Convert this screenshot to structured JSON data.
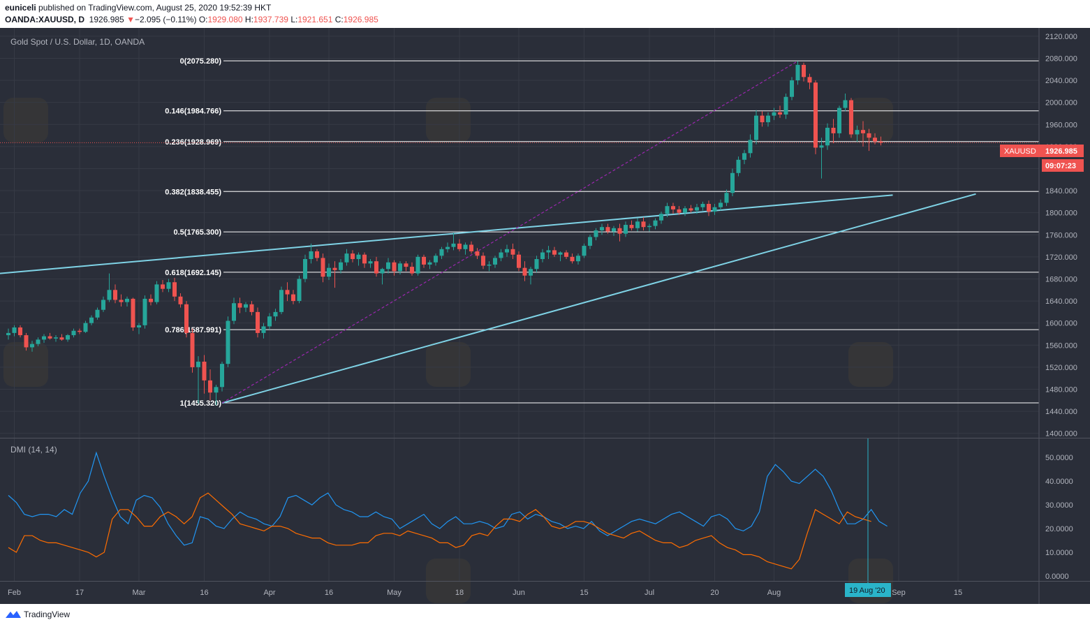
{
  "header": {
    "author": "euniceli",
    "published_text": "published on TradingView.com, August 25, 2020 19:52:39 HKT",
    "symbol": "OANDA:XAUUSD, D",
    "last_price": "1926.985",
    "change_arrow": "▼",
    "change": "−2.095 (−0.11%)",
    "open_label": "O:",
    "open": "1929.080",
    "high_label": "H:",
    "high": "1937.739",
    "low_label": "L:",
    "low": "1921.651",
    "close_label": "C:",
    "close": "1926.985"
  },
  "chart_title": "Gold Spot / U.S. Dollar, 1D, OANDA",
  "indicator_title": "DMI (14, 14)",
  "price_tag": {
    "symbol": "XAUUSD",
    "value": "1926.985",
    "countdown": "09:07:23"
  },
  "crosshair_date": "19 Aug '20",
  "footer": {
    "brand": "TradingView"
  },
  "colors": {
    "background": "#2a2e39",
    "up": "#26a69a",
    "down": "#ef5350",
    "trendline": "#7fd3e6",
    "fib_line": "#ffffff",
    "dashed": "#9c27b0",
    "dmi_plus": "#2196f3",
    "dmi_minus": "#ff6d00",
    "crosshair": "#2ab4c9"
  },
  "chart_data": [
    {
      "type": "candlestick",
      "title": "Gold Spot / U.S. Dollar, 1D, OANDA",
      "x_ticks": [
        "Feb",
        "17",
        "Mar",
        "16",
        "Apr",
        "16",
        "May",
        "18",
        "Jun",
        "15",
        "Jul",
        "20",
        "Aug",
        "Sep",
        "15"
      ],
      "y_ticks": [
        "2120.000",
        "2080.000",
        "2040.000",
        "2000.000",
        "1960.000",
        "1920.000",
        "1880.000",
        "1840.000",
        "1800.000",
        "1760.000",
        "1720.000",
        "1680.000",
        "1640.000",
        "1600.000",
        "1560.000",
        "1520.000",
        "1480.000",
        "1440.000",
        "1400.000"
      ],
      "ylim": [
        1392,
        2135
      ],
      "fib_levels": [
        {
          "label": "0(2075.280)",
          "value": 2075.28
        },
        {
          "label": "0.146(1984.766)",
          "value": 1984.766
        },
        {
          "label": "0.236(1928.969)",
          "value": 1928.969
        },
        {
          "label": "0.382(1838.455)",
          "value": 1838.455
        },
        {
          "label": "0.5(1765.300)",
          "value": 1765.3
        },
        {
          "label": "0.618(1692.145)",
          "value": 1692.145
        },
        {
          "label": "0.786(1587.991)",
          "value": 1587.991
        },
        {
          "label": "1(1455.320)",
          "value": 1455.32
        }
      ],
      "candles": [
        [
          1578,
          1590,
          1570,
          1582
        ],
        [
          1582,
          1596,
          1576,
          1592
        ],
        [
          1592,
          1596,
          1574,
          1578
        ],
        [
          1578,
          1582,
          1550,
          1556
        ],
        [
          1556,
          1568,
          1548,
          1562
        ],
        [
          1562,
          1574,
          1558,
          1570
        ],
        [
          1570,
          1580,
          1564,
          1576
        ],
        [
          1576,
          1582,
          1570,
          1572
        ],
        [
          1572,
          1578,
          1566,
          1574
        ],
        [
          1574,
          1580,
          1568,
          1570
        ],
        [
          1570,
          1580,
          1566,
          1578
        ],
        [
          1578,
          1590,
          1574,
          1586
        ],
        [
          1586,
          1590,
          1580,
          1584
        ],
        [
          1584,
          1604,
          1582,
          1600
        ],
        [
          1600,
          1614,
          1596,
          1610
        ],
        [
          1610,
          1628,
          1606,
          1624
        ],
        [
          1624,
          1648,
          1620,
          1642
        ],
        [
          1642,
          1690,
          1638,
          1660
        ],
        [
          1660,
          1670,
          1636,
          1642
        ],
        [
          1642,
          1652,
          1630,
          1638
        ],
        [
          1638,
          1648,
          1630,
          1644
        ],
        [
          1644,
          1646,
          1586,
          1592
        ],
        [
          1592,
          1600,
          1580,
          1596
        ],
        [
          1596,
          1650,
          1590,
          1644
        ],
        [
          1644,
          1652,
          1632,
          1638
        ],
        [
          1638,
          1676,
          1634,
          1670
        ],
        [
          1670,
          1678,
          1656,
          1662
        ],
        [
          1662,
          1680,
          1656,
          1674
        ],
        [
          1674,
          1682,
          1640,
          1648
        ],
        [
          1648,
          1654,
          1628,
          1634
        ],
        [
          1634,
          1640,
          1574,
          1582
        ],
        [
          1582,
          1590,
          1510,
          1520
        ],
        [
          1520,
          1540,
          1454,
          1530
        ],
        [
          1530,
          1542,
          1472,
          1496
        ],
        [
          1496,
          1516,
          1460,
          1474
        ],
        [
          1474,
          1488,
          1451,
          1484
        ],
        [
          1484,
          1530,
          1476,
          1526
        ],
        [
          1526,
          1612,
          1520,
          1604
        ],
        [
          1604,
          1646,
          1598,
          1636
        ],
        [
          1636,
          1646,
          1618,
          1628
        ],
        [
          1628,
          1638,
          1620,
          1634
        ],
        [
          1634,
          1640,
          1614,
          1620
        ],
        [
          1620,
          1628,
          1574,
          1582
        ],
        [
          1582,
          1600,
          1572,
          1594
        ],
        [
          1594,
          1618,
          1588,
          1612
        ],
        [
          1612,
          1626,
          1604,
          1620
        ],
        [
          1620,
          1666,
          1616,
          1660
        ],
        [
          1660,
          1674,
          1640,
          1652
        ],
        [
          1652,
          1660,
          1634,
          1640
        ],
        [
          1640,
          1686,
          1636,
          1680
        ],
        [
          1680,
          1724,
          1674,
          1716
        ],
        [
          1716,
          1744,
          1708,
          1730
        ],
        [
          1730,
          1734,
          1712,
          1718
        ],
        [
          1718,
          1726,
          1674,
          1684
        ],
        [
          1684,
          1708,
          1678,
          1700
        ],
        [
          1700,
          1712,
          1664,
          1696
        ],
        [
          1696,
          1716,
          1690,
          1710
        ],
        [
          1710,
          1734,
          1704,
          1726
        ],
        [
          1726,
          1732,
          1710,
          1716
        ],
        [
          1716,
          1728,
          1704,
          1724
        ],
        [
          1724,
          1728,
          1700,
          1708
        ],
        [
          1708,
          1716,
          1700,
          1712
        ],
        [
          1712,
          1720,
          1684,
          1690
        ],
        [
          1690,
          1700,
          1670,
          1698
        ],
        [
          1698,
          1718,
          1690,
          1710
        ],
        [
          1710,
          1714,
          1686,
          1694
        ],
        [
          1694,
          1712,
          1688,
          1708
        ],
        [
          1708,
          1712,
          1694,
          1702
        ],
        [
          1702,
          1710,
          1686,
          1690
        ],
        [
          1690,
          1724,
          1686,
          1720
        ],
        [
          1720,
          1724,
          1700,
          1706
        ],
        [
          1706,
          1714,
          1698,
          1710
        ],
        [
          1710,
          1726,
          1704,
          1722
        ],
        [
          1722,
          1738,
          1716,
          1734
        ],
        [
          1734,
          1746,
          1728,
          1738
        ],
        [
          1738,
          1764,
          1732,
          1744
        ],
        [
          1744,
          1752,
          1730,
          1734
        ],
        [
          1734,
          1746,
          1724,
          1742
        ],
        [
          1742,
          1748,
          1726,
          1730
        ],
        [
          1730,
          1736,
          1716,
          1722
        ],
        [
          1722,
          1728,
          1698,
          1704
        ],
        [
          1704,
          1712,
          1694,
          1706
        ],
        [
          1706,
          1722,
          1700,
          1718
        ],
        [
          1718,
          1734,
          1712,
          1728
        ],
        [
          1728,
          1742,
          1720,
          1734
        ],
        [
          1734,
          1744,
          1716,
          1724
        ],
        [
          1724,
          1730,
          1694,
          1700
        ],
        [
          1700,
          1712,
          1676,
          1686
        ],
        [
          1686,
          1702,
          1670,
          1698
        ],
        [
          1698,
          1722,
          1692,
          1716
        ],
        [
          1716,
          1734,
          1710,
          1728
        ],
        [
          1728,
          1740,
          1716,
          1732
        ],
        [
          1732,
          1738,
          1720,
          1724
        ],
        [
          1724,
          1730,
          1712,
          1728
        ],
        [
          1728,
          1732,
          1716,
          1720
        ],
        [
          1720,
          1726,
          1708,
          1712
        ],
        [
          1712,
          1726,
          1706,
          1722
        ],
        [
          1722,
          1744,
          1718,
          1740
        ],
        [
          1740,
          1760,
          1734,
          1756
        ],
        [
          1756,
          1772,
          1750,
          1768
        ],
        [
          1768,
          1780,
          1760,
          1774
        ],
        [
          1774,
          1780,
          1762,
          1766
        ],
        [
          1766,
          1776,
          1758,
          1772
        ],
        [
          1772,
          1780,
          1748,
          1762
        ],
        [
          1762,
          1784,
          1756,
          1778
        ],
        [
          1778,
          1786,
          1768,
          1772
        ],
        [
          1772,
          1790,
          1766,
          1784
        ],
        [
          1784,
          1792,
          1768,
          1774
        ],
        [
          1774,
          1780,
          1766,
          1776
        ],
        [
          1776,
          1790,
          1770,
          1786
        ],
        [
          1786,
          1802,
          1780,
          1798
        ],
        [
          1798,
          1818,
          1792,
          1812
        ],
        [
          1812,
          1818,
          1798,
          1806
        ],
        [
          1806,
          1812,
          1796,
          1800
        ],
        [
          1800,
          1812,
          1794,
          1808
        ],
        [
          1808,
          1814,
          1800,
          1804
        ],
        [
          1804,
          1816,
          1798,
          1810
        ],
        [
          1810,
          1820,
          1804,
          1816
        ],
        [
          1816,
          1822,
          1794,
          1802
        ],
        [
          1802,
          1816,
          1796,
          1810
        ],
        [
          1810,
          1824,
          1804,
          1818
        ],
        [
          1818,
          1842,
          1812,
          1836
        ],
        [
          1836,
          1880,
          1830,
          1872
        ],
        [
          1872,
          1902,
          1866,
          1896
        ],
        [
          1896,
          1914,
          1888,
          1908
        ],
        [
          1908,
          1942,
          1900,
          1932
        ],
        [
          1932,
          1986,
          1924,
          1976
        ],
        [
          1976,
          1984,
          1956,
          1964
        ],
        [
          1964,
          1982,
          1956,
          1976
        ],
        [
          1976,
          1990,
          1968,
          1982
        ],
        [
          1982,
          1994,
          1972,
          1978
        ],
        [
          1978,
          2016,
          1970,
          2010
        ],
        [
          2010,
          2046,
          2004,
          2040
        ],
        [
          2040,
          2075,
          2032,
          2068
        ],
        [
          2068,
          2072,
          2038,
          2046
        ],
        [
          2046,
          2052,
          2024,
          2036
        ],
        [
          2036,
          2040,
          1906,
          1918
        ],
        [
          1918,
          1936,
          1862,
          1922
        ],
        [
          1922,
          1962,
          1914,
          1954
        ],
        [
          1954,
          1970,
          1926,
          1944
        ],
        [
          1944,
          1994,
          1936,
          1990
        ],
        [
          1990,
          2016,
          1984,
          2004
        ],
        [
          2004,
          2008,
          1936,
          1942
        ],
        [
          1942,
          1958,
          1928,
          1950
        ],
        [
          1950,
          1966,
          1920,
          1944
        ],
        [
          1944,
          1952,
          1912,
          1936
        ],
        [
          1936,
          1944,
          1924,
          1929
        ],
        [
          1929,
          1938,
          1922,
          1927
        ]
      ],
      "channel_upper": [
        [
          0,
          1690
        ],
        [
          149,
          1832
        ]
      ],
      "channel_lower": [
        [
          36,
          1455
        ],
        [
          163,
          1834
        ]
      ],
      "fib_connector": [
        [
          36,
          1455
        ],
        [
          133,
          2075
        ]
      ]
    },
    {
      "type": "line",
      "title": "DMI (14, 14)",
      "y_ticks": [
        "50.0000",
        "40.0000",
        "30.0000",
        "20.0000",
        "10.0000",
        "0.0000"
      ],
      "ylim": [
        -1.5,
        58
      ],
      "series": [
        {
          "values": [
            34,
            31,
            26,
            25,
            26,
            26,
            25,
            28,
            26,
            35,
            40,
            52,
            42,
            33,
            25,
            22,
            32,
            34,
            33,
            29,
            22,
            17,
            13,
            14,
            25,
            24,
            21,
            20,
            24,
            27,
            25,
            24,
            22,
            21,
            25,
            33,
            34,
            32,
            30,
            33,
            35,
            30,
            28,
            27,
            25,
            25,
            27,
            25,
            24,
            20,
            22,
            24,
            26,
            22,
            20,
            23,
            25,
            22,
            22,
            23,
            22,
            20,
            21,
            26,
            27,
            24,
            26,
            25,
            23,
            22,
            20,
            21,
            20,
            23,
            19,
            17,
            19,
            21,
            23,
            24,
            23,
            22,
            24,
            26,
            27,
            25,
            23,
            21,
            25,
            26,
            24,
            20,
            19,
            21,
            27,
            42,
            47,
            44,
            40,
            39,
            42,
            45,
            42,
            36,
            28,
            22,
            22,
            24,
            28,
            23,
            21
          ]
        },
        {
          "values": [
            12,
            10,
            17,
            17,
            15,
            14,
            14,
            13,
            12,
            11,
            10,
            8,
            10,
            24,
            28,
            28,
            25,
            21,
            21,
            25,
            27,
            25,
            22,
            25,
            33,
            35,
            32,
            29,
            26,
            22,
            21,
            20,
            19,
            21,
            21,
            20,
            18,
            17,
            16,
            16,
            14,
            13,
            13,
            13,
            14,
            14,
            17,
            18,
            18,
            17,
            19,
            18,
            17,
            16,
            14,
            14,
            12,
            13,
            17,
            18,
            17,
            21,
            24,
            24,
            23,
            26,
            28,
            25,
            21,
            20,
            21,
            23,
            23,
            22,
            20,
            18,
            17,
            16,
            18,
            19,
            17,
            15,
            14,
            14,
            12,
            13,
            15,
            16,
            17,
            14,
            12,
            11,
            9,
            9,
            8,
            6,
            5,
            4,
            3,
            7,
            18,
            28,
            26,
            24,
            22,
            27,
            25,
            24,
            23
          ]
        }
      ]
    }
  ]
}
